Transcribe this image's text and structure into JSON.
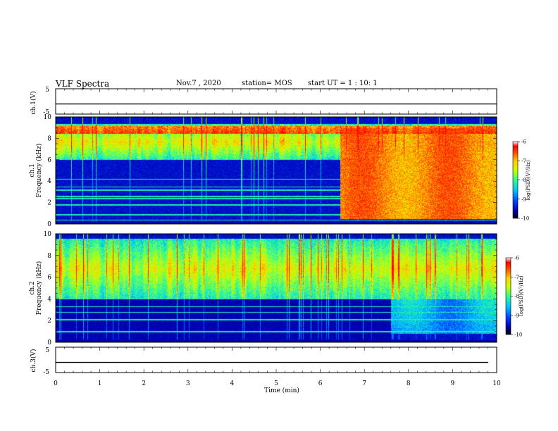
{
  "header": {
    "title": "VLF Spectra",
    "date": "Nov.7 , 2020",
    "station": "station= MOS",
    "start": "start UT = 1 : 10: 1"
  },
  "chart_data": [
    {
      "type": "line",
      "panel": "ch.1(V)",
      "ylabel": "ch.1(V)",
      "ylim": [
        -5,
        5
      ],
      "yticks": [
        "5",
        "-5"
      ],
      "x": [
        0,
        10
      ],
      "y": [
        -1,
        -1
      ]
    },
    {
      "type": "heatmap",
      "panel": "ch.1 spectrogram",
      "ylabel": "ch.1",
      "ylabel2": "Frequency (kHz)",
      "ylim": [
        0,
        10
      ],
      "yticks": [
        "0",
        "2",
        "4",
        "6",
        "8",
        "10"
      ],
      "colorbar": {
        "label": "log(PSD)(V²/Hz)",
        "range": [
          -10,
          -6
        ],
        "ticks": [
          "-6",
          "-7",
          "-8",
          "-9",
          "-10"
        ]
      },
      "features": {
        "chorus_band_khz": [
          6,
          9.4
        ],
        "strong_band_khz": 8.8,
        "hiss_onset_min": 6.45,
        "hiss_band_khz": [
          0.5,
          9
        ],
        "lines_khz": [
          0.4,
          0.9,
          1.8,
          2.4,
          2.6,
          3.2,
          3.5,
          4.2
        ]
      }
    },
    {
      "type": "heatmap",
      "panel": "ch.2 spectrogram",
      "ylabel": "ch.2",
      "ylabel2": "Frequency (kHz)",
      "ylim": [
        0,
        10
      ],
      "yticks": [
        "0",
        "2",
        "4",
        "6",
        "8",
        "10"
      ],
      "colorbar": {
        "label": "log(PSD)(V²/Hz)",
        "range": [
          -10,
          -6
        ],
        "ticks": [
          "-6",
          "-7",
          "-8",
          "-9",
          "-10"
        ]
      },
      "features": {
        "chorus_band_khz": [
          4,
          9.6
        ],
        "hiss_onset_min": 7.6,
        "lines_khz": [
          1.0,
          2.1,
          2.8,
          3.3,
          4.1
        ]
      }
    },
    {
      "type": "line",
      "panel": "ch.3(V)",
      "ylabel": "ch.3(V)",
      "ylim": [
        -5,
        5
      ],
      "yticks": [
        "5",
        "-5"
      ],
      "x": [
        0,
        10
      ],
      "y": [
        -1,
        -1
      ]
    }
  ],
  "xaxis": {
    "label": "Time (min)",
    "range": [
      0,
      10
    ],
    "ticks": [
      "0",
      "1",
      "2",
      "3",
      "4",
      "5",
      "6",
      "7",
      "8",
      "9",
      "10"
    ]
  },
  "colormap": [
    "#000000",
    "#0000b4",
    "#0040ff",
    "#00c0ff",
    "#30ff90",
    "#c8ff00",
    "#ffd000",
    "#ff5000",
    "#ff0000",
    "#ffffff"
  ]
}
